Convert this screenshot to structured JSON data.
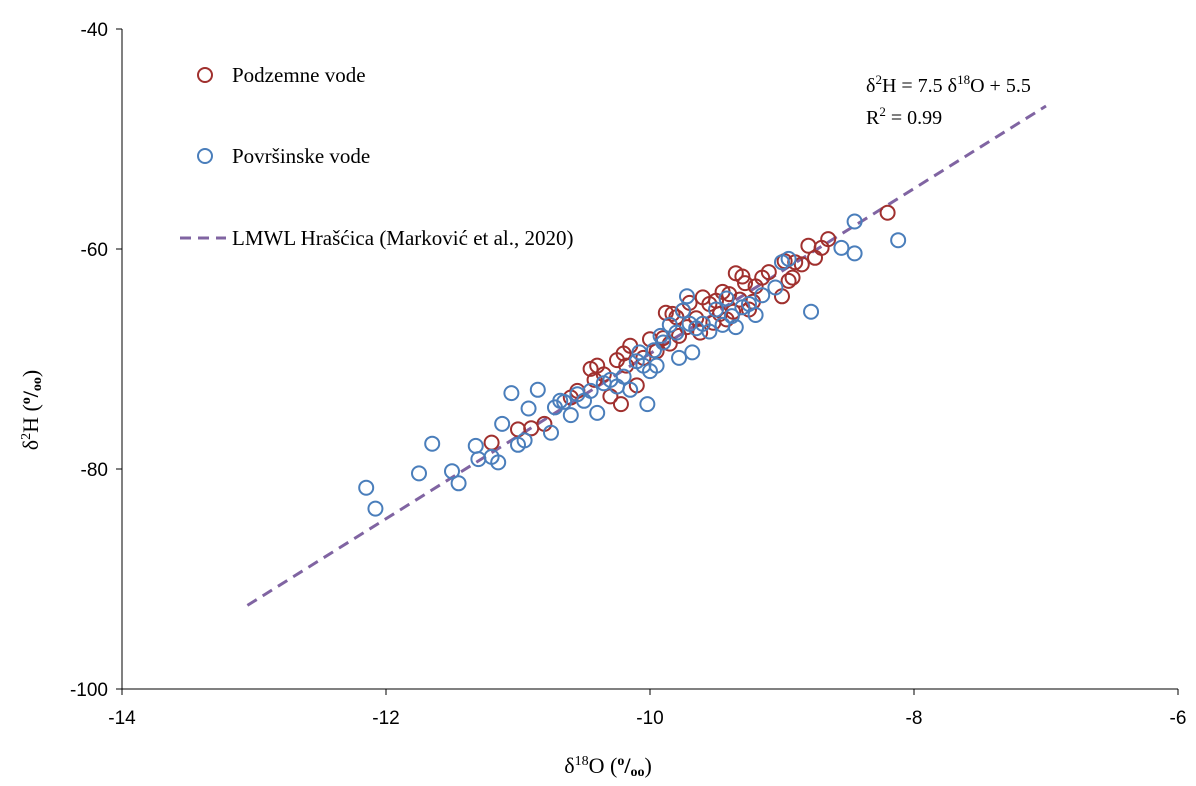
{
  "chart_data": {
    "type": "scatter",
    "xlim": [
      -14,
      -6
    ],
    "ylim": [
      -100,
      -40
    ],
    "x_ticks": [
      "-14",
      "-12",
      "-10",
      "-8",
      "-6"
    ],
    "y_ticks": [
      "-100",
      "-80",
      "-60",
      "-40"
    ],
    "xlabel": {
      "base": "δ",
      "sup": "18",
      "main": "O (",
      "permil_o1": "o",
      "slash": "/",
      "permil_o2": "oo",
      "close": ")"
    },
    "ylabel": {
      "base": "δ",
      "sup": "2",
      "main": "H (",
      "permil_o1": "o",
      "slash": "/",
      "permil_o2": "oo",
      "close": ")"
    },
    "grid": false,
    "legend_position": "top-left",
    "equation": {
      "line1_a": "δ",
      "line1_sup1": "2",
      "line1_b": "H = 7.5 δ",
      "line1_sup2": "18",
      "line1_c": "O + 5.5",
      "line2_a": "R",
      "line2_sup": "2",
      "line2_b": " = 0.99"
    },
    "colors": {
      "groundwater": "#A0302E",
      "surface": "#4A7EBB",
      "lmwl": "#8064A2"
    },
    "series": [
      {
        "name": "Podzemne vode",
        "marker": "open-circle",
        "points": [
          [
            -8.2,
            -56.7
          ],
          [
            -8.7,
            -59.9
          ],
          [
            -8.65,
            -59.1
          ],
          [
            -8.75,
            -60.8
          ],
          [
            -8.8,
            -59.7
          ],
          [
            -8.85,
            -61.4
          ],
          [
            -8.9,
            -61.2
          ],
          [
            -8.92,
            -62.6
          ],
          [
            -8.95,
            -62.9
          ],
          [
            -8.98,
            -61.1
          ],
          [
            -9.0,
            -64.3
          ],
          [
            -9.1,
            -62.1
          ],
          [
            -9.15,
            -62.6
          ],
          [
            -9.2,
            -63.4
          ],
          [
            -9.22,
            -64.8
          ],
          [
            -9.25,
            -65.5
          ],
          [
            -9.28,
            -63.1
          ],
          [
            -9.3,
            -62.5
          ],
          [
            -9.32,
            -64.6
          ],
          [
            -9.35,
            -62.2
          ],
          [
            -9.37,
            -65.7
          ],
          [
            -9.4,
            -64.1
          ],
          [
            -9.42,
            -66.4
          ],
          [
            -9.45,
            -63.9
          ],
          [
            -9.47,
            -65.9
          ],
          [
            -9.5,
            -64.7
          ],
          [
            -9.52,
            -66.7
          ],
          [
            -9.55,
            -65.0
          ],
          [
            -9.6,
            -64.4
          ],
          [
            -9.62,
            -67.6
          ],
          [
            -9.65,
            -66.3
          ],
          [
            -9.7,
            -64.9
          ],
          [
            -9.72,
            -67.1
          ],
          [
            -9.75,
            -65.6
          ],
          [
            -9.78,
            -67.9
          ],
          [
            -9.8,
            -66.2
          ],
          [
            -9.83,
            -65.9
          ],
          [
            -9.85,
            -68.6
          ],
          [
            -9.88,
            -65.8
          ],
          [
            -9.9,
            -68.1
          ],
          [
            -9.95,
            -69.3
          ],
          [
            -10.0,
            -68.2
          ],
          [
            -10.05,
            -69.9
          ],
          [
            -10.1,
            -72.4
          ],
          [
            -10.15,
            -68.8
          ],
          [
            -10.18,
            -70.6
          ],
          [
            -10.2,
            -69.5
          ],
          [
            -10.22,
            -74.1
          ],
          [
            -10.25,
            -70.1
          ],
          [
            -10.3,
            -73.4
          ],
          [
            -10.35,
            -71.4
          ],
          [
            -10.4,
            -70.6
          ],
          [
            -10.42,
            -71.9
          ],
          [
            -10.45,
            -70.9
          ],
          [
            -11.2,
            -77.6
          ],
          [
            -11.0,
            -76.4
          ],
          [
            -10.9,
            -76.3
          ],
          [
            -10.8,
            -75.9
          ],
          [
            -10.6,
            -73.5
          ],
          [
            -10.55,
            -72.9
          ]
        ]
      },
      {
        "name": "Površinske vode",
        "marker": "open-circle",
        "points": [
          [
            -12.15,
            -81.7
          ],
          [
            -12.08,
            -83.6
          ],
          [
            -11.75,
            -80.4
          ],
          [
            -11.65,
            -77.7
          ],
          [
            -11.5,
            -80.2
          ],
          [
            -11.45,
            -81.3
          ],
          [
            -11.32,
            -77.9
          ],
          [
            -11.3,
            -79.1
          ],
          [
            -11.2,
            -78.9
          ],
          [
            -11.15,
            -79.4
          ],
          [
            -11.12,
            -75.9
          ],
          [
            -11.05,
            -73.1
          ],
          [
            -11.0,
            -77.8
          ],
          [
            -10.95,
            -77.4
          ],
          [
            -10.92,
            -74.5
          ],
          [
            -10.85,
            -72.8
          ],
          [
            -10.75,
            -76.7
          ],
          [
            -10.72,
            -74.4
          ],
          [
            -10.68,
            -73.8
          ],
          [
            -10.65,
            -73.9
          ],
          [
            -10.6,
            -75.1
          ],
          [
            -10.55,
            -73.2
          ],
          [
            -10.5,
            -73.8
          ],
          [
            -10.45,
            -72.9
          ],
          [
            -10.4,
            -74.9
          ],
          [
            -10.35,
            -72.2
          ],
          [
            -10.3,
            -71.9
          ],
          [
            -10.25,
            -72.5
          ],
          [
            -10.2,
            -71.6
          ],
          [
            -10.15,
            -72.8
          ],
          [
            -10.1,
            -70.2
          ],
          [
            -10.08,
            -69.4
          ],
          [
            -10.05,
            -70.6
          ],
          [
            -10.02,
            -74.1
          ],
          [
            -10.0,
            -71.1
          ],
          [
            -9.97,
            -69.2
          ],
          [
            -9.95,
            -70.6
          ],
          [
            -9.92,
            -67.9
          ],
          [
            -9.9,
            -68.5
          ],
          [
            -9.85,
            -66.9
          ],
          [
            -9.8,
            -67.6
          ],
          [
            -9.78,
            -69.9
          ],
          [
            -9.75,
            -65.6
          ],
          [
            -9.72,
            -64.3
          ],
          [
            -9.7,
            -66.8
          ],
          [
            -9.68,
            -69.4
          ],
          [
            -9.65,
            -67.2
          ],
          [
            -9.6,
            -66.8
          ],
          [
            -9.55,
            -67.5
          ],
          [
            -9.5,
            -65.5
          ],
          [
            -9.45,
            -66.9
          ],
          [
            -9.42,
            -64.5
          ],
          [
            -9.38,
            -66.1
          ],
          [
            -9.35,
            -67.1
          ],
          [
            -9.3,
            -65.3
          ],
          [
            -9.25,
            -65.0
          ],
          [
            -9.2,
            -66.0
          ],
          [
            -9.15,
            -64.2
          ],
          [
            -9.05,
            -63.5
          ],
          [
            -9.0,
            -61.2
          ],
          [
            -8.95,
            -60.9
          ],
          [
            -8.78,
            -65.7
          ],
          [
            -8.55,
            -59.9
          ],
          [
            -8.45,
            -60.4
          ],
          [
            -8.45,
            -57.5
          ],
          [
            -8.12,
            -59.2
          ]
        ]
      },
      {
        "name": "LMWL Hrašćica (Marković et al., 2020)",
        "type": "line",
        "style": "dashed",
        "x": [
          -13.05,
          -7.0
        ],
        "y": [
          -92.4,
          -47.0
        ]
      }
    ]
  }
}
